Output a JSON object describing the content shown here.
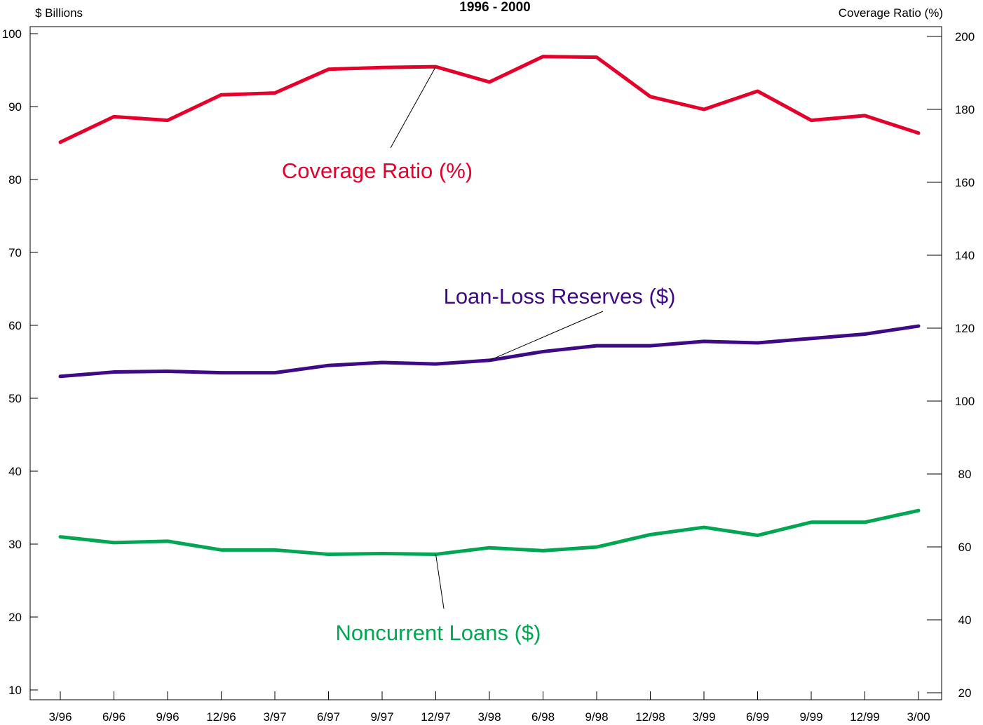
{
  "chart_data": {
    "type": "line",
    "title": "1996 - 2000",
    "y_left_label": "$ Billions",
    "y_right_label": "Coverage Ratio (%)",
    "y_left_range": [
      10,
      100
    ],
    "y_left_ticks": [
      10,
      20,
      30,
      40,
      50,
      60,
      70,
      80,
      90,
      100
    ],
    "y_right_range": [
      20,
      200
    ],
    "y_right_ticks": [
      20,
      40,
      60,
      80,
      100,
      120,
      140,
      160,
      180,
      200
    ],
    "categories": [
      "3/96",
      "6/96",
      "9/96",
      "12/96",
      "3/97",
      "6/97",
      "9/97",
      "12/97",
      "3/98",
      "6/98",
      "9/98",
      "12/98",
      "3/99",
      "6/99",
      "9/99",
      "12/99",
      "3/00"
    ],
    "grid": false,
    "legend": "none",
    "series": [
      {
        "name": "Coverage Ratio (%)",
        "axis": "right",
        "color": "#E4002B",
        "values": [
          171,
          178,
          177,
          184,
          184.5,
          191,
          191.5,
          191.7,
          187.5,
          194.5,
          194.3,
          183.5,
          180,
          185,
          177,
          178.3,
          173.5
        ],
        "callout_at": "12/97"
      },
      {
        "name": "Loan-Loss Reserves ($)",
        "axis": "left",
        "color": "#3F0A86",
        "values": [
          53.0,
          53.6,
          53.7,
          53.5,
          53.5,
          54.5,
          54.9,
          54.7,
          55.2,
          56.4,
          57.2,
          57.2,
          57.8,
          57.6,
          58.2,
          58.8,
          59.9
        ],
        "callout_at": "3/98"
      },
      {
        "name": "Noncurrent Loans ($)",
        "axis": "left",
        "color": "#00A651",
        "values": [
          31.0,
          30.2,
          30.4,
          29.2,
          29.2,
          28.6,
          28.7,
          28.6,
          29.5,
          29.1,
          29.6,
          31.3,
          32.3,
          31.2,
          33.0,
          33.0,
          34.6
        ],
        "callout_at": "12/97"
      }
    ]
  }
}
